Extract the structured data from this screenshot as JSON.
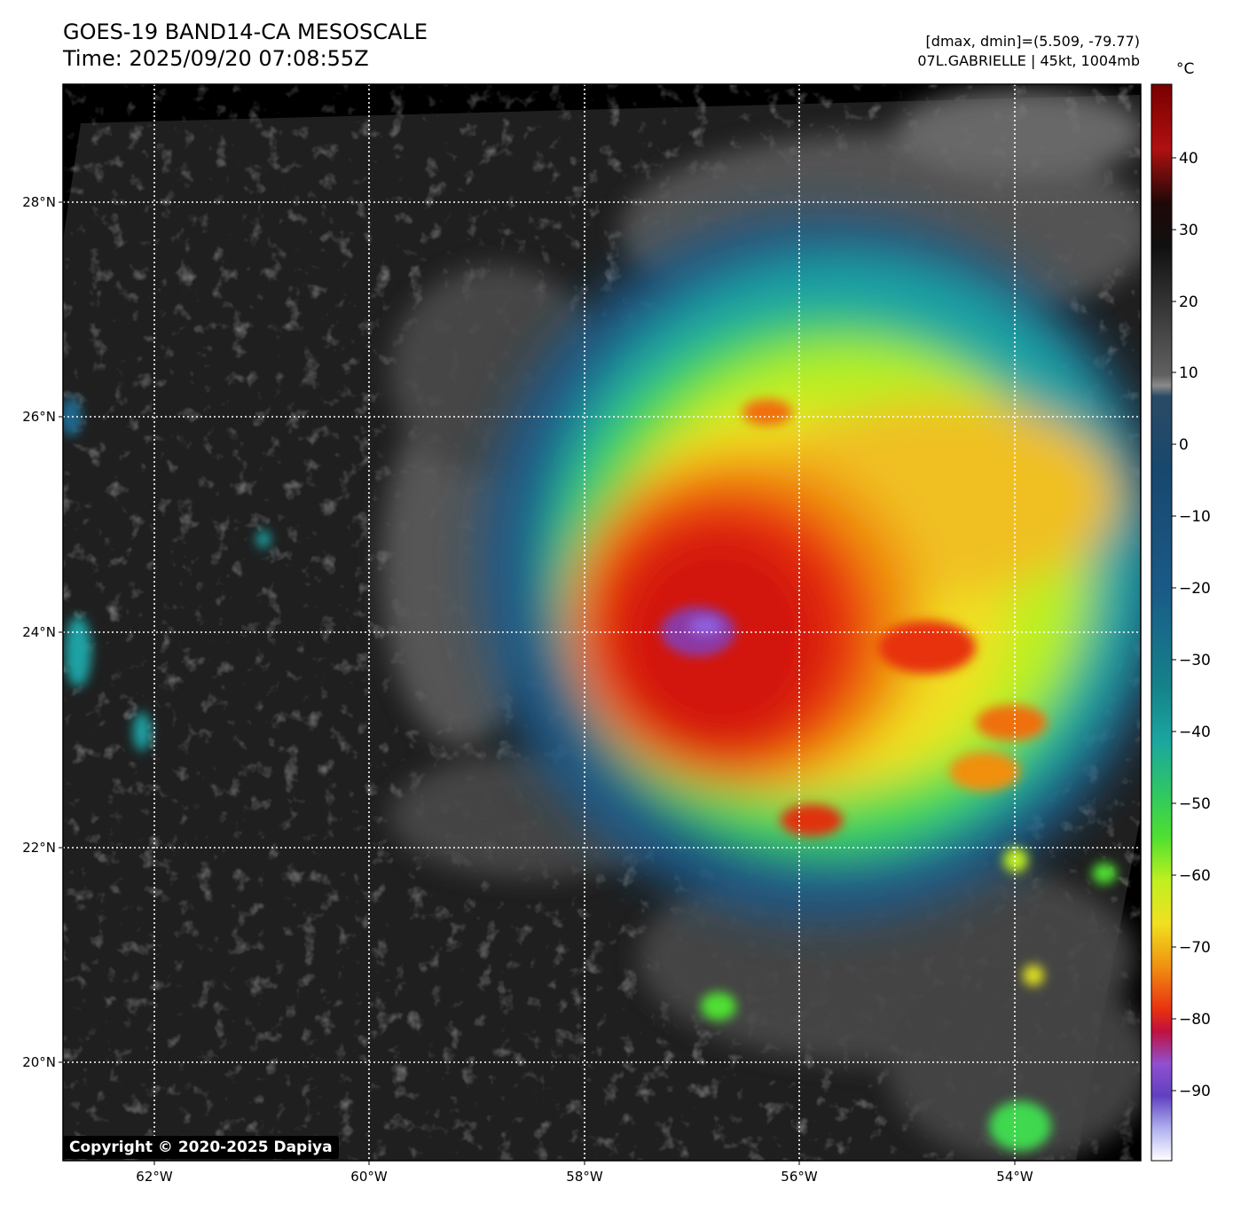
{
  "title": {
    "line1": "GOES-19 BAND14-CA MESOSCALE",
    "line2": "Time: 2025/09/20 07:08:55Z"
  },
  "info": {
    "range": "[dmax, dmin]=(5.509, -79.77)",
    "storm": "07L.GABRIELLE | 45kt, 1004mb"
  },
  "map": {
    "lon_ticks": [
      "62°W",
      "60°W",
      "58°W",
      "56°W",
      "54°W"
    ],
    "lat_ticks": [
      "28°N",
      "26°N",
      "24°N",
      "22°N",
      "20°N"
    ],
    "grid": "dotted white lines at each tick"
  },
  "colorbar": {
    "unit": "°C",
    "ticks": [
      "40",
      "30",
      "20",
      "10",
      "0",
      "−10",
      "−20",
      "−30",
      "−40",
      "−50",
      "−60",
      "−70",
      "−80",
      "−90"
    ],
    "colors": {
      "warm_black": "#000000",
      "gray": "#888888",
      "blue": "#1c5a8a",
      "cyan": "#18a0a8",
      "green": "#40e040",
      "yellow": "#f0f020",
      "orange": "#f08010",
      "red": "#d81810",
      "purple": "#7040c8",
      "white": "#ffffff"
    }
  },
  "copyright": "Copyright © 2020-2025 Dapiya"
}
